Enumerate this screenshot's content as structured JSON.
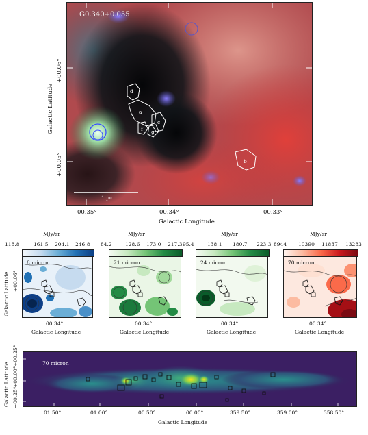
{
  "main_panel": {
    "title": "G0.340+0.055",
    "xlabel": "Galactic Longitude",
    "ylabel": "Galactic Latitude",
    "xticks": [
      "00.35°",
      "00.34°",
      "00.33°"
    ],
    "yticks": [
      "+00.06°",
      "+00.05°"
    ],
    "scalebar_label": "1 pc",
    "regions": [
      "d",
      "a",
      "c",
      "f",
      "g",
      "b"
    ]
  },
  "small_panels": [
    {
      "label": "8 micron",
      "unit": "MJy/sr",
      "cbar_ticks": [
        "118.8",
        "161.5",
        "204.1",
        "246.8"
      ],
      "cmap_colors": [
        "#f4f8fc",
        "#0c3f86"
      ],
      "xtick": "00.34°",
      "xlabel": "Galactic Longitude",
      "ylabel": "Galactic Latitude",
      "ytick": "+00.06°"
    },
    {
      "label": "21 micron",
      "unit": "MJy/sr",
      "cbar_ticks": [
        "84.2",
        "128.6",
        "173.0",
        "217.3"
      ],
      "cmap_colors": [
        "#f5fbf3",
        "#0a5c2a"
      ],
      "xtick": "00.34°",
      "xlabel": "Galactic Longitude"
    },
    {
      "label": "24 micron",
      "unit": "MJy/sr",
      "cbar_ticks": [
        "95.4",
        "138.1",
        "180.7",
        "223.3"
      ],
      "cmap_colors": [
        "#f5fbf3",
        "#0a5c2a"
      ],
      "xtick": "00.34°",
      "xlabel": "Galactic Longitude"
    },
    {
      "label": "70 micron",
      "unit": "MJy/sr",
      "cbar_ticks": [
        "8944",
        "10390",
        "11837",
        "13283"
      ],
      "cmap_colors": [
        "#fff3ee",
        "#7a0a12"
      ],
      "xtick": "00.34°",
      "xlabel": "Galactic Longitude"
    }
  ],
  "bottom_panel": {
    "label": "70 micron",
    "xlabel": "Galactic Longitude",
    "ylabel": "Galactic Latitude",
    "xticks": [
      "01.50°",
      "01.00°",
      "00.50°",
      "00.00°",
      "359.50°",
      "359.00°",
      "358.50°"
    ],
    "yticks": [
      "+00.25°",
      "+00.00°",
      "−00.25°"
    ]
  }
}
